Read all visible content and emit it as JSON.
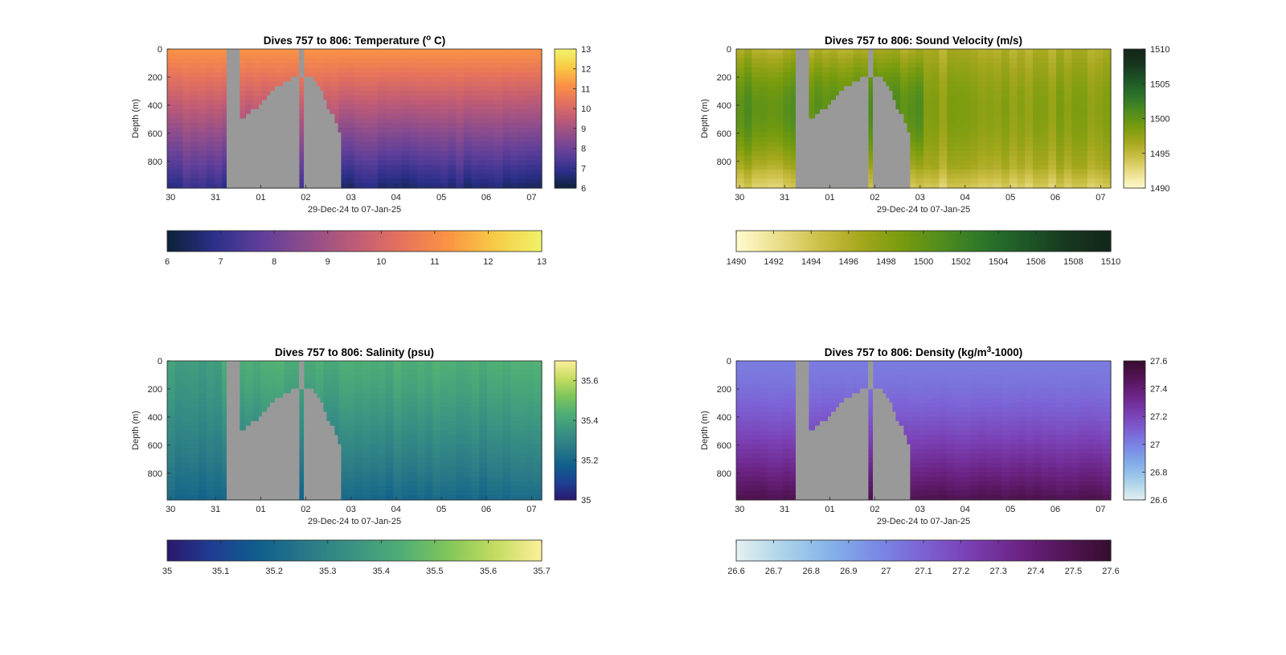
{
  "figure": {
    "xlabel": "29-Dec-24 to 07-Jan-25",
    "ylabel": "Depth (m)",
    "x_tick_labels": [
      "30",
      "31",
      "01",
      "02",
      "03",
      "04",
      "05",
      "06",
      "07"
    ],
    "y_tick_labels": [
      "0",
      "200",
      "400",
      "600",
      "800"
    ],
    "missing_data_color": "#999999"
  },
  "chart_data": [
    {
      "type": "heatmap",
      "title": "Dives 757 to 806: Temperature (",
      "title_sup": "o",
      "title_suffix": " C)",
      "xlabel": "29-Dec-24 to 07-Jan-25",
      "ylabel": "Depth (m)",
      "ylim": [
        0,
        990
      ],
      "y_reversed": true,
      "clim": [
        6,
        13
      ],
      "colormap": "thermal",
      "colors": [
        "#0b2236",
        "#2c2f8a",
        "#5f3f9a",
        "#8e4d8c",
        "#be5b76",
        "#e5725d",
        "#fb9443",
        "#f7cb45",
        "#f1f36a"
      ],
      "colorbar_ticks": [
        "6",
        "7",
        "8",
        "9",
        "10",
        "11",
        "12",
        "13"
      ],
      "colorbar_h_ticks": [
        "6",
        "7",
        "8",
        "9",
        "10",
        "11",
        "12",
        "13"
      ],
      "field": {
        "surface": 11.2,
        "bottom": 7.0
      }
    },
    {
      "type": "heatmap",
      "title": "Dives 757 to 806: Sound Velocity (m/s)",
      "xlabel": "29-Dec-24 to 07-Jan-25",
      "ylabel": "Depth (m)",
      "ylim": [
        0,
        990
      ],
      "y_reversed": true,
      "clim": [
        1490,
        1510
      ],
      "colormap": "speed",
      "colors": [
        "#fefccf",
        "#ebdf8c",
        "#cdc048",
        "#a4a71c",
        "#779b0e",
        "#4e8c1f",
        "#2b7429",
        "#1d5627",
        "#17361e",
        "#13261a"
      ],
      "colorbar_ticks": [
        "1490",
        "1495",
        "1500",
        "1505",
        "1510"
      ],
      "colorbar_h_ticks": [
        "1490",
        "1492",
        "1494",
        "1496",
        "1498",
        "1500",
        "1502",
        "1504",
        "1506",
        "1508",
        "1510"
      ],
      "field": {
        "surface": 1496.0,
        "mid": 1500.5,
        "bottom": 1496.5
      }
    },
    {
      "type": "heatmap",
      "title": "Dives 757 to 806: Salinity (psu)",
      "xlabel": "29-Dec-24 to 07-Jan-25",
      "ylabel": "Depth (m)",
      "ylim": [
        0,
        990
      ],
      "y_reversed": true,
      "clim": [
        35.0,
        35.7
      ],
      "colormap": "haline",
      "colors": [
        "#2a186c",
        "#1e3f92",
        "#0f5f8c",
        "#2a7a87",
        "#3b9382",
        "#4fae76",
        "#80c65a",
        "#c3dc60",
        "#fdef9a"
      ],
      "colorbar_ticks": [
        "35",
        "35.2",
        "35.4",
        "35.6"
      ],
      "colorbar_h_ticks": [
        "35",
        "35.1",
        "35.2",
        "35.3",
        "35.4",
        "35.5",
        "35.6",
        "35.7"
      ],
      "field": {
        "surface": 35.43,
        "bottom": 35.2
      }
    },
    {
      "type": "heatmap",
      "title": "Dives 757 to 806: Density (kg/m",
      "title_sup": "3",
      "title_suffix": "-1000)",
      "xlabel": "29-Dec-24 to 07-Jan-25",
      "ylabel": "Depth (m)",
      "ylim": [
        0,
        990
      ],
      "y_reversed": true,
      "clim": [
        26.6,
        27.6
      ],
      "colormap": "dense",
      "colors": [
        "#e6f1f1",
        "#acd3ea",
        "#85b2e8",
        "#7a8ae6",
        "#7c62d4",
        "#7a3fb2",
        "#6c2587",
        "#541558",
        "#360d2f"
      ],
      "colorbar_ticks": [
        "26.6",
        "26.8",
        "27",
        "27.2",
        "27.4",
        "27.6"
      ],
      "colorbar_h_ticks": [
        "26.6",
        "26.7",
        "26.8",
        "26.9",
        "27",
        "27.1",
        "27.2",
        "27.3",
        "27.4",
        "27.5",
        "27.6"
      ],
      "field": {
        "surface": 27.02,
        "bottom": 27.5
      }
    }
  ]
}
